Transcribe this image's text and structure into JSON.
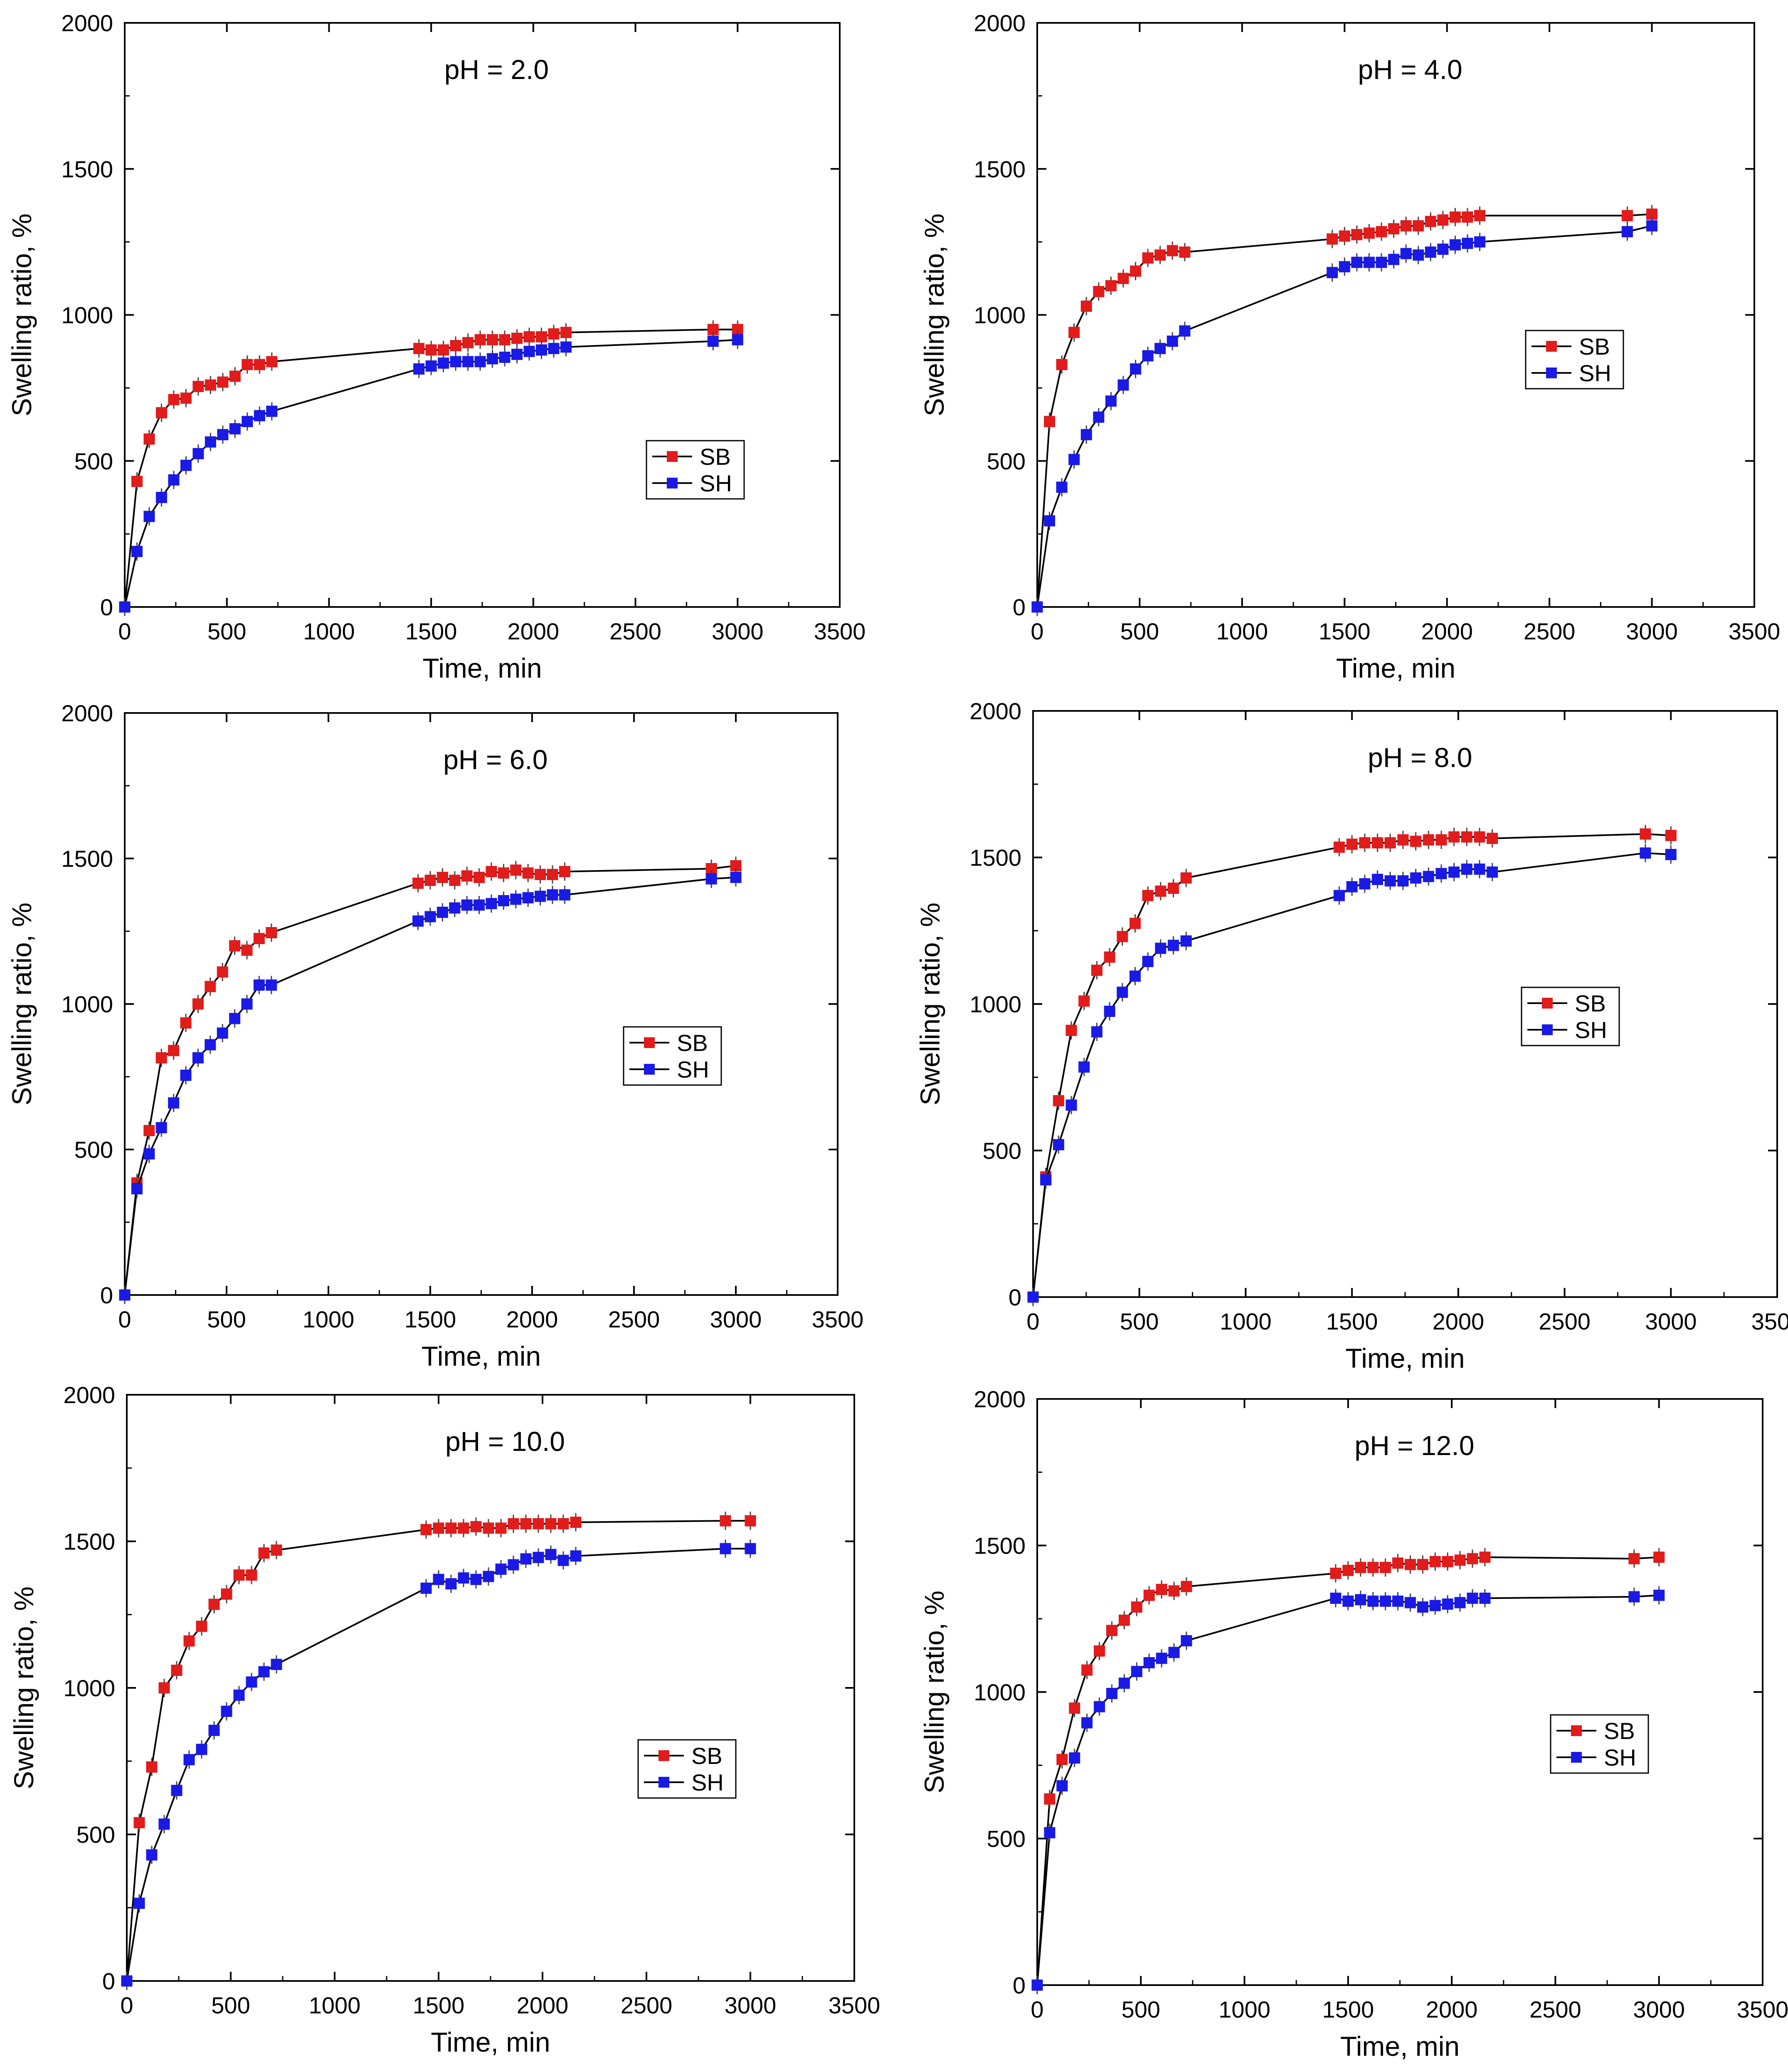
{
  "figure": {
    "x_ticks": [
      0,
      500,
      1000,
      1500,
      2000,
      2500,
      3000,
      3500
    ],
    "y_ticks": [
      0,
      500,
      1000,
      1500,
      2000
    ],
    "x_tick_labels": [
      "0",
      "500",
      "1000",
      "1500",
      "2000",
      "2500",
      "3000",
      "3500"
    ],
    "y_tick_labels": [
      "0",
      "500",
      "1000",
      "1500",
      "2000"
    ]
  },
  "colors": {
    "SB": "#e21b1b",
    "SH": "#1a1ae6",
    "line": "#000000"
  },
  "chart_data": [
    {
      "type": "line",
      "title": "pH = 2.0",
      "xlabel": "Time, min",
      "ylabel": "Swelling ratio, %",
      "xlim": [
        0,
        3500
      ],
      "ylim": [
        0,
        2000
      ],
      "legend": {
        "position": "right-middle",
        "entries": [
          "SB",
          "SH"
        ]
      },
      "series": [
        {
          "name": "SB",
          "x": [
            0,
            60,
            120,
            180,
            240,
            300,
            360,
            420,
            480,
            540,
            600,
            660,
            720,
            1440,
            1500,
            1560,
            1620,
            1680,
            1740,
            1800,
            1860,
            1920,
            1980,
            2040,
            2100,
            2160,
            2880,
            3000
          ],
          "y": [
            0,
            430,
            575,
            665,
            710,
            715,
            755,
            760,
            770,
            790,
            830,
            830,
            840,
            885,
            880,
            880,
            895,
            905,
            915,
            915,
            915,
            920,
            925,
            925,
            935,
            940,
            950,
            950
          ]
        },
        {
          "name": "SH",
          "x": [
            0,
            60,
            120,
            180,
            240,
            300,
            360,
            420,
            480,
            540,
            600,
            660,
            720,
            1440,
            1500,
            1560,
            1620,
            1680,
            1740,
            1800,
            1860,
            1920,
            1980,
            2040,
            2100,
            2160,
            2880,
            3000
          ],
          "y": [
            0,
            190,
            310,
            375,
            435,
            485,
            525,
            565,
            590,
            610,
            635,
            655,
            670,
            815,
            825,
            835,
            840,
            840,
            840,
            850,
            855,
            865,
            875,
            880,
            885,
            890,
            910,
            915
          ]
        }
      ]
    },
    {
      "type": "line",
      "title": "pH = 4.0",
      "xlabel": "Time, min",
      "ylabel": "Swelling ratio, %",
      "xlim": [
        0,
        3500
      ],
      "ylim": [
        0,
        2000
      ],
      "legend": {
        "position": "right-upper",
        "entries": [
          "SB",
          "SH"
        ]
      },
      "series": [
        {
          "name": "SB",
          "x": [
            0,
            60,
            120,
            180,
            240,
            300,
            360,
            420,
            480,
            540,
            600,
            660,
            720,
            1440,
            1500,
            1560,
            1620,
            1680,
            1740,
            1800,
            1860,
            1920,
            1980,
            2040,
            2100,
            2160,
            2880,
            3000
          ],
          "y": [
            0,
            635,
            830,
            940,
            1030,
            1080,
            1100,
            1125,
            1150,
            1195,
            1205,
            1220,
            1215,
            1260,
            1270,
            1275,
            1280,
            1285,
            1295,
            1305,
            1305,
            1320,
            1325,
            1335,
            1335,
            1340,
            1340,
            1345
          ]
        },
        {
          "name": "SH",
          "x": [
            0,
            60,
            120,
            180,
            240,
            300,
            360,
            420,
            480,
            540,
            600,
            660,
            720,
            1440,
            1500,
            1560,
            1620,
            1680,
            1740,
            1800,
            1860,
            1920,
            1980,
            2040,
            2100,
            2160,
            2880,
            3000
          ],
          "y": [
            0,
            295,
            410,
            505,
            590,
            650,
            705,
            760,
            815,
            860,
            885,
            910,
            945,
            1145,
            1165,
            1180,
            1180,
            1180,
            1190,
            1210,
            1205,
            1215,
            1225,
            1240,
            1245,
            1250,
            1285,
            1305
          ]
        }
      ]
    },
    {
      "type": "line",
      "title": "pH = 6.0",
      "xlabel": "Time, min",
      "ylabel": "Swelling ratio, %",
      "xlim": [
        0,
        3500
      ],
      "ylim": [
        0,
        2000
      ],
      "legend": {
        "position": "right-middle",
        "entries": [
          "SB",
          "SH"
        ]
      },
      "series": [
        {
          "name": "SB",
          "x": [
            0,
            60,
            120,
            180,
            240,
            300,
            360,
            420,
            480,
            540,
            600,
            660,
            720,
            1440,
            1500,
            1560,
            1620,
            1680,
            1740,
            1800,
            1860,
            1920,
            1980,
            2040,
            2100,
            2160,
            2880,
            3000
          ],
          "y": [
            0,
            385,
            565,
            815,
            840,
            935,
            1000,
            1060,
            1110,
            1200,
            1185,
            1225,
            1245,
            1415,
            1425,
            1435,
            1425,
            1440,
            1435,
            1455,
            1450,
            1460,
            1450,
            1445,
            1445,
            1455,
            1465,
            1475
          ]
        },
        {
          "name": "SH",
          "x": [
            0,
            60,
            120,
            180,
            240,
            300,
            360,
            420,
            480,
            540,
            600,
            660,
            720,
            1440,
            1500,
            1560,
            1620,
            1680,
            1740,
            1800,
            1860,
            1920,
            1980,
            2040,
            2100,
            2160,
            2880,
            3000
          ],
          "y": [
            0,
            365,
            485,
            575,
            660,
            755,
            815,
            860,
            900,
            950,
            1000,
            1065,
            1065,
            1285,
            1300,
            1315,
            1330,
            1340,
            1340,
            1345,
            1355,
            1360,
            1365,
            1370,
            1375,
            1375,
            1430,
            1435
          ]
        }
      ]
    },
    {
      "type": "line",
      "title": "pH = 8.0",
      "xlabel": "Time, min",
      "ylabel": "Swelling ratio, %",
      "xlim": [
        0,
        3500
      ],
      "ylim": [
        0,
        2000
      ],
      "legend": {
        "position": "right-middle",
        "entries": [
          "SB",
          "SH"
        ]
      },
      "series": [
        {
          "name": "SB",
          "x": [
            0,
            60,
            120,
            180,
            240,
            300,
            360,
            420,
            480,
            540,
            600,
            660,
            720,
            1440,
            1500,
            1560,
            1620,
            1680,
            1740,
            1800,
            1860,
            1920,
            1980,
            2040,
            2100,
            2160,
            2880,
            3000
          ],
          "y": [
            0,
            410,
            670,
            910,
            1010,
            1115,
            1160,
            1230,
            1275,
            1370,
            1385,
            1395,
            1430,
            1535,
            1545,
            1550,
            1550,
            1550,
            1560,
            1555,
            1560,
            1560,
            1570,
            1570,
            1570,
            1565,
            1580,
            1575
          ]
        },
        {
          "name": "SH",
          "x": [
            0,
            60,
            120,
            180,
            240,
            300,
            360,
            420,
            480,
            540,
            600,
            660,
            720,
            1440,
            1500,
            1560,
            1620,
            1680,
            1740,
            1800,
            1860,
            1920,
            1980,
            2040,
            2100,
            2160,
            2880,
            3000
          ],
          "y": [
            0,
            400,
            520,
            655,
            785,
            905,
            975,
            1040,
            1095,
            1145,
            1190,
            1200,
            1215,
            1370,
            1400,
            1410,
            1425,
            1420,
            1420,
            1430,
            1435,
            1445,
            1450,
            1460,
            1460,
            1450,
            1515,
            1510
          ]
        }
      ]
    },
    {
      "type": "line",
      "title": "pH = 10.0",
      "xlabel": "Time, min",
      "ylabel": "Swelling ratio, %",
      "xlim": [
        0,
        3500
      ],
      "ylim": [
        0,
        2000
      ],
      "legend": {
        "position": "right-middle",
        "entries": [
          "SB",
          "SH"
        ]
      },
      "series": [
        {
          "name": "SB",
          "x": [
            0,
            60,
            120,
            180,
            240,
            300,
            360,
            420,
            480,
            540,
            600,
            660,
            720,
            1440,
            1500,
            1560,
            1620,
            1680,
            1740,
            1800,
            1860,
            1920,
            1980,
            2040,
            2100,
            2160,
            2880,
            3000
          ],
          "y": [
            0,
            540,
            730,
            1000,
            1060,
            1160,
            1210,
            1285,
            1320,
            1385,
            1385,
            1460,
            1470,
            1540,
            1545,
            1545,
            1545,
            1550,
            1545,
            1545,
            1560,
            1560,
            1560,
            1560,
            1560,
            1565,
            1570,
            1570
          ]
        },
        {
          "name": "SH",
          "x": [
            0,
            60,
            120,
            180,
            240,
            300,
            360,
            420,
            480,
            540,
            600,
            660,
            720,
            1440,
            1500,
            1560,
            1620,
            1680,
            1740,
            1800,
            1860,
            1920,
            1980,
            2040,
            2100,
            2160,
            2880,
            3000
          ],
          "y": [
            0,
            265,
            430,
            535,
            650,
            755,
            790,
            855,
            920,
            975,
            1020,
            1055,
            1080,
            1340,
            1370,
            1355,
            1375,
            1370,
            1380,
            1405,
            1420,
            1440,
            1445,
            1455,
            1435,
            1450,
            1475,
            1475
          ]
        }
      ]
    },
    {
      "type": "line",
      "title": "pH = 12.0",
      "xlabel": "Time, min",
      "ylabel": "Swelling ratio, %",
      "xlim": [
        0,
        3500
      ],
      "ylim": [
        0,
        2000
      ],
      "legend": {
        "position": "right-middle",
        "entries": [
          "SB",
          "SH"
        ]
      },
      "series": [
        {
          "name": "SB",
          "x": [
            0,
            60,
            120,
            180,
            240,
            300,
            360,
            420,
            480,
            540,
            600,
            660,
            720,
            1440,
            1500,
            1560,
            1620,
            1680,
            1740,
            1800,
            1860,
            1920,
            1980,
            2040,
            2100,
            2160,
            2880,
            3000
          ],
          "y": [
            0,
            635,
            770,
            945,
            1075,
            1140,
            1210,
            1245,
            1290,
            1330,
            1350,
            1345,
            1360,
            1405,
            1415,
            1425,
            1425,
            1425,
            1440,
            1435,
            1435,
            1445,
            1445,
            1450,
            1455,
            1460,
            1455,
            1460
          ]
        },
        {
          "name": "SH",
          "x": [
            0,
            60,
            120,
            180,
            240,
            300,
            360,
            420,
            480,
            540,
            600,
            660,
            720,
            1440,
            1500,
            1560,
            1620,
            1680,
            1740,
            1800,
            1860,
            1920,
            1980,
            2040,
            2100,
            2160,
            2880,
            3000
          ],
          "y": [
            0,
            520,
            680,
            775,
            895,
            950,
            995,
            1030,
            1070,
            1100,
            1115,
            1135,
            1175,
            1320,
            1310,
            1315,
            1310,
            1310,
            1310,
            1305,
            1290,
            1295,
            1300,
            1305,
            1320,
            1320,
            1325,
            1330
          ]
        }
      ]
    }
  ]
}
